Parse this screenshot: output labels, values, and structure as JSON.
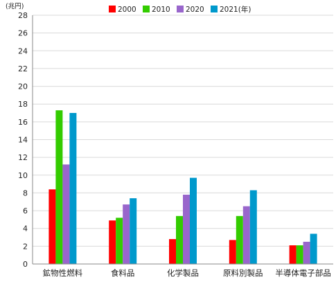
{
  "chart_data": {
    "type": "bar",
    "unit_label": "(兆円)",
    "categories": [
      "鉱物性燃料",
      "食料品",
      "化学製品",
      "原料別製品",
      "半導体電子部品"
    ],
    "series": [
      {
        "name": "2000",
        "color": "#ff0000",
        "values": [
          8.4,
          4.9,
          2.8,
          2.7,
          2.1
        ]
      },
      {
        "name": "2010",
        "color": "#33cc00",
        "values": [
          17.3,
          5.2,
          5.4,
          5.4,
          2.1
        ]
      },
      {
        "name": "2020",
        "color": "#9966cc",
        "values": [
          11.2,
          6.7,
          7.8,
          6.5,
          2.5
        ]
      },
      {
        "name": "2021",
        "color": "#0099cc",
        "values": [
          17.0,
          7.4,
          9.7,
          8.3,
          3.4
        ]
      }
    ],
    "legend_suffix": "(年)",
    "ylim": [
      0,
      28
    ],
    "yticks": [
      "0",
      "2",
      "4",
      "6",
      "8",
      "10",
      "12",
      "14",
      "16",
      "18",
      "20",
      "22",
      "24",
      "26",
      "28"
    ],
    "grid": true,
    "legend_position": "top"
  }
}
